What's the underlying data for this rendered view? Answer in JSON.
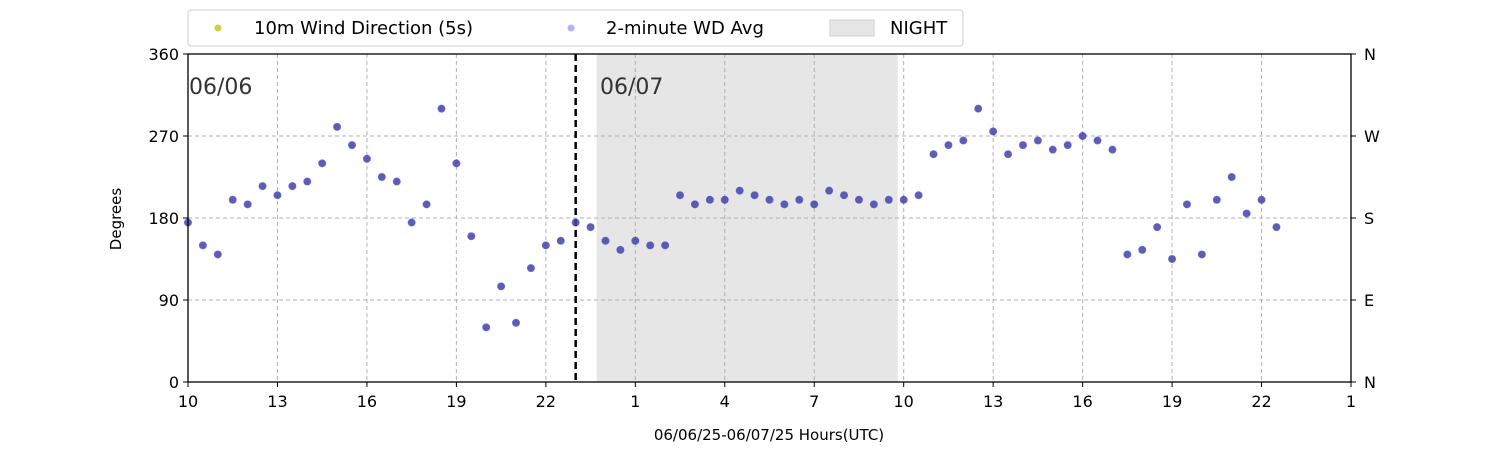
{
  "chart_data": {
    "type": "scatter",
    "xlabel": "06/06/25-06/07/25  Hours(UTC)",
    "ylabel": "Degrees",
    "xlim": [
      10,
      49
    ],
    "ylim": [
      0,
      360
    ],
    "x_ticks": [
      10,
      13,
      16,
      19,
      22,
      25,
      28,
      31,
      34,
      37,
      40,
      43,
      46,
      49
    ],
    "x_tick_labels": [
      "10",
      "13",
      "16",
      "19",
      "22",
      "1",
      "4",
      "7",
      "10",
      "13",
      "16",
      "19",
      "22",
      "1"
    ],
    "y_ticks": [
      0,
      90,
      180,
      270,
      360
    ],
    "y_tick_labels": [
      "0",
      "90",
      "180",
      "270",
      "360"
    ],
    "y2_tick_labels": [
      "N",
      "E",
      "S",
      "W",
      "N"
    ],
    "grid": true,
    "legend_position": "top-left",
    "day_labels": [
      "06/06",
      "06/07"
    ],
    "midnight_x": 23,
    "night": {
      "name": "NIGHT",
      "start": 23.7,
      "end": 33.8,
      "color": "#e6e6e6"
    },
    "series": [
      {
        "name": "10m Wind Direction (5s)",
        "color": "#bdbd00",
        "x": [
          10.0,
          10.5,
          11.0,
          11.5,
          12.0,
          12.5,
          13.0,
          13.5,
          14.0,
          14.5,
          15.0,
          15.5,
          16.0,
          16.5,
          17.0,
          17.5,
          18.0,
          18.5,
          19.0,
          19.5,
          20.0,
          20.5,
          21.0,
          21.5,
          22.0,
          22.5,
          23.0,
          23.5,
          24.0,
          24.5,
          25.0,
          25.5,
          26.0,
          26.5,
          27.0,
          27.5,
          28.0,
          28.5,
          29.0,
          29.5,
          30.0,
          30.5,
          31.0,
          31.5,
          32.0,
          32.5,
          33.0,
          33.5,
          34.0,
          34.5,
          35.0,
          35.5,
          36.0,
          36.5,
          37.0,
          37.5,
          38.0,
          38.5,
          39.0,
          39.5,
          40.0,
          40.5,
          41.0,
          41.5,
          42.0,
          42.5,
          43.0,
          43.5,
          44.0,
          44.5,
          45.0,
          45.5,
          46.0,
          46.5
        ],
        "y": [
          175,
          150,
          140,
          200,
          195,
          215,
          205,
          215,
          220,
          240,
          280,
          260,
          245,
          225,
          220,
          175,
          195,
          300,
          240,
          160,
          60,
          105,
          65,
          125,
          150,
          155,
          175,
          170,
          155,
          145,
          155,
          150,
          150,
          205,
          195,
          200,
          200,
          210,
          205,
          200,
          195,
          200,
          195,
          210,
          205,
          200,
          195,
          200,
          200,
          205,
          250,
          260,
          265,
          300,
          275,
          250,
          260,
          265,
          255,
          260,
          270,
          265,
          255,
          140,
          145,
          170,
          135,
          195,
          140,
          200,
          225,
          185,
          200,
          170
        ]
      },
      {
        "name": "2-minute WD Avg",
        "color": "#0000ff",
        "x": [
          10.0,
          10.5,
          11.0,
          11.5,
          12.0,
          12.5,
          13.0,
          13.5,
          14.0,
          14.5,
          15.0,
          15.5,
          16.0,
          16.5,
          17.0,
          17.5,
          18.0,
          18.5,
          19.0,
          19.5,
          20.0,
          20.5,
          21.0,
          21.5,
          22.0,
          22.5,
          23.0,
          23.5,
          24.0,
          24.5,
          25.0,
          25.5,
          26.0,
          26.5,
          27.0,
          27.5,
          28.0,
          28.5,
          29.0,
          29.5,
          30.0,
          30.5,
          31.0,
          31.5,
          32.0,
          32.5,
          33.0,
          33.5,
          34.0,
          34.5,
          35.0,
          35.5,
          36.0,
          36.5,
          37.0,
          37.5,
          38.0,
          38.5,
          39.0,
          39.5,
          40.0,
          40.5,
          41.0,
          41.5,
          42.0,
          42.5,
          43.0,
          43.5,
          44.0,
          44.5,
          45.0,
          45.5,
          46.0,
          46.5
        ],
        "y": [
          175,
          150,
          140,
          200,
          195,
          215,
          205,
          215,
          220,
          240,
          280,
          260,
          245,
          225,
          220,
          175,
          195,
          300,
          240,
          160,
          60,
          105,
          65,
          125,
          150,
          155,
          175,
          170,
          155,
          145,
          155,
          150,
          150,
          205,
          195,
          200,
          200,
          210,
          205,
          200,
          195,
          200,
          195,
          210,
          205,
          200,
          195,
          200,
          200,
          205,
          250,
          260,
          265,
          300,
          275,
          250,
          260,
          265,
          255,
          260,
          270,
          265,
          255,
          140,
          145,
          170,
          135,
          195,
          140,
          200,
          225,
          185,
          200,
          170
        ]
      }
    ]
  }
}
